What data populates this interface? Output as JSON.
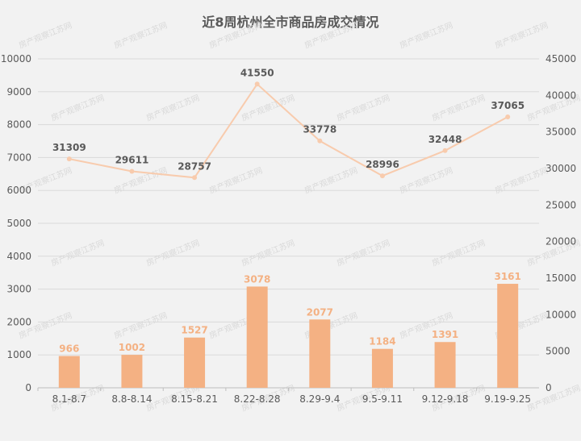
{
  "chart_data": {
    "type": "bar",
    "title": "近8周杭州全市商品房成交情况",
    "categories": [
      "8.1-8.7",
      "8.8-8.14",
      "8.15-8.21",
      "8.22-8.28",
      "8.29-9.4",
      "9.5-9.11",
      "9.12-9.18",
      "9.19-9.25"
    ],
    "series": [
      {
        "type": "bar",
        "axis": "left",
        "values": [
          966,
          1002,
          1527,
          3078,
          2077,
          1184,
          1391,
          3161
        ],
        "color": "#f4b183"
      },
      {
        "type": "line",
        "axis": "right",
        "values": [
          31309,
          29611,
          28757,
          41550,
          33778,
          28996,
          32448,
          37065
        ],
        "color": "#f8cbad"
      }
    ],
    "ylim_left": [
      0,
      10000
    ],
    "yticks_left": [
      0,
      1000,
      2000,
      3000,
      4000,
      5000,
      6000,
      7000,
      8000,
      9000,
      10000
    ],
    "ylim_right": [
      0,
      45000
    ],
    "yticks_right": [
      0,
      5000,
      10000,
      15000,
      20000,
      25000,
      30000,
      35000,
      40000,
      45000
    ],
    "grid": true,
    "legend": "none",
    "watermark": "房产观察江苏网"
  }
}
